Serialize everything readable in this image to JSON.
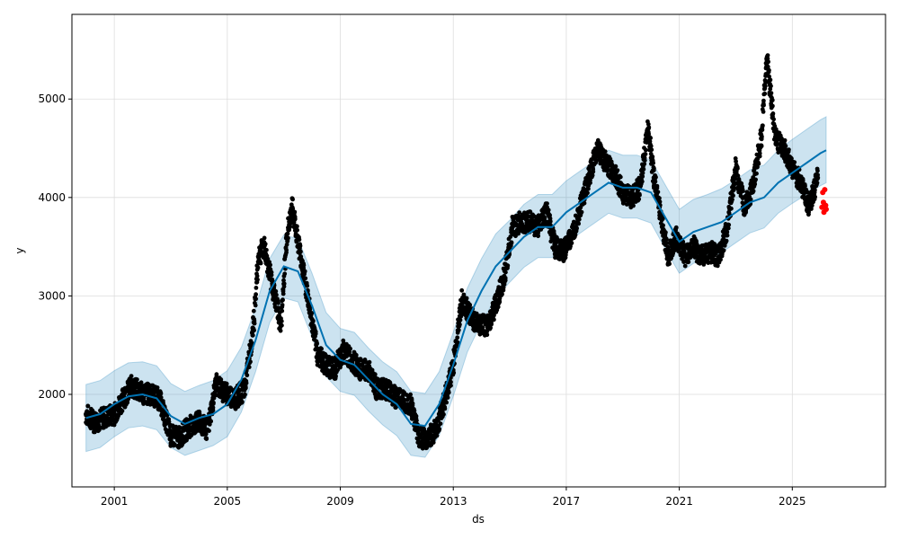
{
  "chart_data": {
    "type": "scatter",
    "title": "",
    "xlabel": "ds",
    "ylabel": "y",
    "xlim": [
      1999.5,
      2028.3
    ],
    "ylim": [
      1060,
      5860
    ],
    "grid": true,
    "x_ticks": [
      2001,
      2005,
      2009,
      2013,
      2017,
      2021,
      2025
    ],
    "y_ticks": [
      2000,
      3000,
      4000,
      5000
    ],
    "colors": {
      "observed": "#000000",
      "forecast_line": "#0072B2",
      "interval_fill": "#0072B2",
      "holdout": "#ff0000"
    },
    "series": [
      {
        "type": "line",
        "x": [
          2000.0,
          2000.5,
          2001.0,
          2001.5,
          2002.0,
          2002.5,
          2003.0,
          2003.5,
          2004.0,
          2004.5,
          2005.0,
          2005.5,
          2006.0,
          2006.5,
          2007.0,
          2007.5,
          2008.0,
          2008.5,
          2009.0,
          2009.5,
          2010.0,
          2010.5,
          2011.0,
          2011.5,
          2012.0,
          2012.5,
          2013.0,
          2013.5,
          2014.0,
          2014.5,
          2015.0,
          2015.5,
          2016.0,
          2016.5,
          2017.0,
          2017.5,
          2018.0,
          2018.5,
          2019.0,
          2019.5,
          2020.0,
          2020.5,
          2021.0,
          2021.5,
          2022.0,
          2022.5,
          2023.0,
          2023.5,
          2024.0,
          2024.5,
          2025.0,
          2025.5,
          2026.0,
          2026.2
        ],
        "yhat": [
          1760,
          1800,
          1900,
          1980,
          2000,
          1960,
          1780,
          1700,
          1760,
          1800,
          1900,
          2150,
          2550,
          3050,
          3300,
          3250,
          2900,
          2500,
          2350,
          2300,
          2150,
          2000,
          1900,
          1700,
          1680,
          1900,
          2300,
          2750,
          3050,
          3300,
          3450,
          3600,
          3700,
          3700,
          3850,
          3950,
          4050,
          4150,
          4100,
          4100,
          4050,
          3800,
          3550,
          3650,
          3700,
          3750,
          3850,
          3950,
          4000,
          4150,
          4250,
          4350,
          4450,
          4480
        ],
        "yhat_lower": [
          1420,
          1460,
          1570,
          1660,
          1680,
          1640,
          1460,
          1380,
          1430,
          1480,
          1570,
          1820,
          2230,
          2730,
          2980,
          2940,
          2580,
          2180,
          2030,
          1990,
          1830,
          1690,
          1580,
          1380,
          1360,
          1580,
          1980,
          2430,
          2730,
          2980,
          3140,
          3290,
          3390,
          3390,
          3540,
          3640,
          3740,
          3840,
          3790,
          3790,
          3740,
          3480,
          3230,
          3330,
          3380,
          3440,
          3540,
          3640,
          3690,
          3840,
          3940,
          4030,
          4120,
          4150
        ],
        "yhat_upper": [
          2100,
          2140,
          2240,
          2320,
          2330,
          2290,
          2110,
          2030,
          2090,
          2140,
          2240,
          2480,
          2880,
          3380,
          3620,
          3580,
          3230,
          2830,
          2670,
          2630,
          2470,
          2330,
          2230,
          2030,
          2010,
          2230,
          2630,
          3080,
          3380,
          3630,
          3770,
          3930,
          4030,
          4030,
          4170,
          4270,
          4370,
          4480,
          4430,
          4430,
          4380,
          4130,
          3880,
          3980,
          4030,
          4090,
          4180,
          4280,
          4330,
          4480,
          4590,
          4690,
          4790,
          4820
        ]
      },
      {
        "type": "scatter",
        "x": [
          2000.0,
          2000.3,
          2000.6,
          2001.0,
          2001.3,
          2001.6,
          2002.0,
          2002.3,
          2002.6,
          2003.0,
          2003.3,
          2003.6,
          2004.0,
          2004.3,
          2004.6,
          2005.0,
          2005.3,
          2005.6,
          2005.9,
          2006.1,
          2006.3,
          2006.6,
          2006.9,
          2007.1,
          2007.3,
          2007.6,
          2007.9,
          2008.2,
          2008.5,
          2008.8,
          2009.1,
          2009.4,
          2009.7,
          2010.0,
          2010.3,
          2010.6,
          2010.9,
          2011.2,
          2011.5,
          2011.8,
          2012.1,
          2012.4,
          2012.7,
          2013.0,
          2013.3,
          2013.6,
          2013.9,
          2014.2,
          2014.5,
          2014.8,
          2015.1,
          2015.4,
          2015.7,
          2016.0,
          2016.3,
          2016.6,
          2016.9,
          2017.2,
          2017.5,
          2017.8,
          2018.1,
          2018.4,
          2018.7,
          2019.0,
          2019.3,
          2019.6,
          2019.9,
          2020.1,
          2020.3,
          2020.6,
          2020.9,
          2021.2,
          2021.5,
          2021.8,
          2022.1,
          2022.4,
          2022.7,
          2023.0,
          2023.3,
          2023.6,
          2023.9,
          2024.1,
          2024.4,
          2024.7,
          2025.0,
          2025.3,
          2025.6,
          2025.9
        ],
        "y": [
          1800,
          1720,
          1760,
          1800,
          1950,
          2080,
          2010,
          2000,
          1950,
          1580,
          1560,
          1660,
          1720,
          1640,
          2100,
          2000,
          1960,
          2050,
          2600,
          3400,
          3500,
          3100,
          2700,
          3600,
          3900,
          3400,
          2900,
          2400,
          2300,
          2250,
          2450,
          2350,
          2250,
          2250,
          2050,
          2050,
          1980,
          1950,
          1900,
          1560,
          1550,
          1650,
          1950,
          2300,
          2950,
          2800,
          2700,
          2700,
          2900,
          3200,
          3700,
          3750,
          3750,
          3700,
          3850,
          3500,
          3450,
          3600,
          3900,
          4200,
          4500,
          4350,
          4250,
          4050,
          4000,
          4100,
          4700,
          4200,
          3900,
          3400,
          3600,
          3400,
          3500,
          3400,
          3450,
          3400,
          3700,
          4300,
          3900,
          4100,
          4600,
          5400,
          4600,
          4500,
          4300,
          4150,
          3900,
          4200
        ]
      },
      {
        "type": "scatter",
        "x": [
          2026.05,
          2026.08,
          2026.1,
          2026.12,
          2026.15,
          2026.18,
          2026.2
        ],
        "y": [
          3900,
          4050,
          3950,
          3850,
          4080,
          3920,
          3880
        ]
      }
    ]
  }
}
